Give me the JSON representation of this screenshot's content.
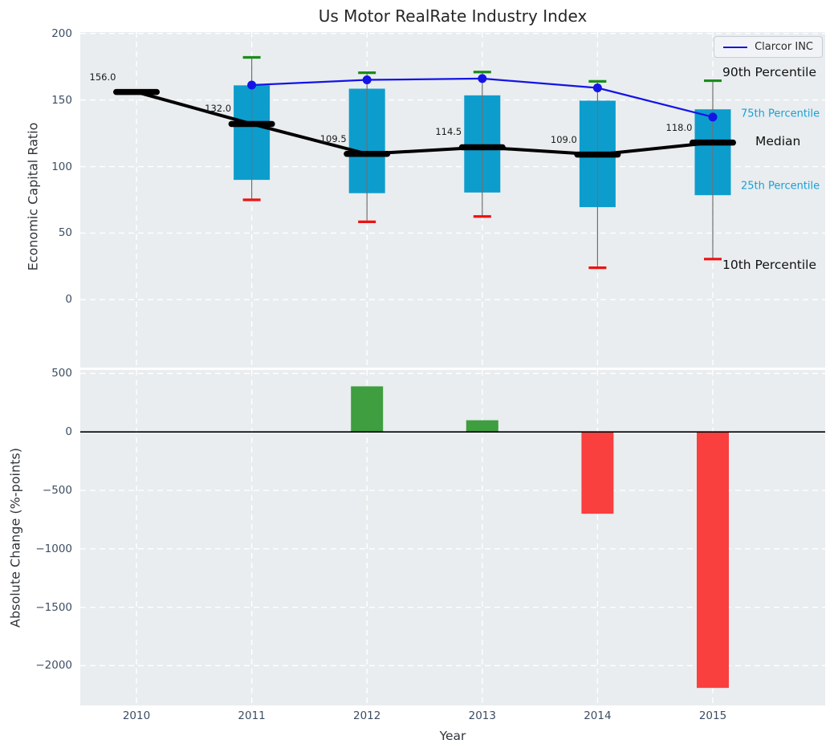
{
  "title": "Us Motor RealRate Industry Index",
  "colors": {
    "plot_bg": "#e9edef",
    "grid": "#ffffff",
    "box": "#0d9dcd",
    "whisker": "#707070",
    "cap_high": "#1b8c1b",
    "cap_low": "#ee1111",
    "median": "#000000",
    "company": "#1414e6",
    "bar_pos": "#3f9e3f",
    "bar_neg": "#fa3f3f",
    "tick_text": "#3d4d63",
    "annotation_blue": "#18a0d8",
    "annotation_black": "#111111"
  },
  "chart_data": [
    {
      "type": "box",
      "title": "Us Motor RealRate Industry Index",
      "ylabel": "Economic Capital Ratio",
      "legend": {
        "label": "Clarcor INC",
        "position": "upper right"
      },
      "grid": true,
      "categories": [
        "2010",
        "2011",
        "2012",
        "2013",
        "2014",
        "2015"
      ],
      "yticks": [
        200,
        150,
        100,
        50,
        0
      ],
      "ylim": [
        -51,
        201
      ],
      "median": {
        "values": [
          156.0,
          132.0,
          109.5,
          114.5,
          109.0,
          118.0
        ],
        "labels": [
          "156.0",
          "132.0",
          "109.5",
          "114.5",
          "109.0",
          "118.0"
        ]
      },
      "percentiles": {
        "p25": [
          null,
          90,
          80,
          80.5,
          69.5,
          78.5
        ],
        "p75": [
          null,
          161,
          158.5,
          153.5,
          149.5,
          143
        ],
        "p10": [
          null,
          75,
          58.5,
          62.5,
          24,
          30.5
        ],
        "p90": [
          null,
          182,
          170.5,
          171,
          164,
          164.5
        ]
      },
      "company_line": {
        "name": "Clarcor INC",
        "values": [
          null,
          161.2,
          165.1,
          166.1,
          159.1,
          137.2
        ]
      },
      "annotations": [
        {
          "label": "90th Percentile",
          "value": 170.8,
          "style": "black",
          "x": 800
        },
        {
          "label": "75th Percentile",
          "value": 139.5,
          "style": "blue",
          "x": 823
        },
        {
          "label": "Median",
          "value": 119.0,
          "style": "black",
          "x": 841
        },
        {
          "label": "25th Percentile",
          "value": 85.0,
          "style": "blue",
          "x": 823
        },
        {
          "label": "10th Percentile",
          "value": 25.9,
          "style": "black",
          "x": 800
        }
      ]
    },
    {
      "type": "bar",
      "ylabel": "Absolute Change (%-points)",
      "xlabel": "Year",
      "grid": true,
      "zero_line": true,
      "categories": [
        "2010",
        "2011",
        "2012",
        "2013",
        "2014",
        "2015"
      ],
      "values": [
        null,
        null,
        390,
        100,
        -700,
        -2190
      ],
      "yticks": [
        500,
        0,
        -500,
        -1000,
        -1500,
        -2000
      ],
      "ylim": [
        -2340,
        530
      ]
    }
  ]
}
